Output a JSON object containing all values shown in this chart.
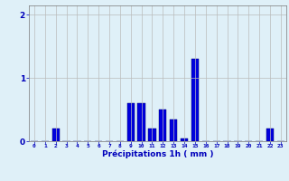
{
  "hours": [
    0,
    1,
    2,
    3,
    4,
    5,
    6,
    7,
    8,
    9,
    10,
    11,
    12,
    13,
    14,
    15,
    16,
    17,
    18,
    19,
    20,
    21,
    22,
    23
  ],
  "values": [
    0.0,
    0.0,
    0.2,
    0.0,
    0.0,
    0.0,
    0.0,
    0.0,
    0.0,
    0.6,
    0.6,
    0.2,
    0.5,
    0.35,
    0.05,
    1.3,
    0.0,
    0.0,
    0.0,
    0.0,
    0.0,
    0.0,
    0.2,
    0.0
  ],
  "bar_color": "#0000dd",
  "bar_edge_color": "#000066",
  "background_color": "#dff0f8",
  "grid_color": "#bbbbbb",
  "xlabel": "Précipitations 1h ( mm )",
  "xlabel_color": "#0000bb",
  "tick_color": "#0000bb",
  "ylim": [
    0,
    2.15
  ],
  "yticks": [
    0,
    1,
    2
  ],
  "figsize": [
    3.2,
    2.0
  ],
  "dpi": 100
}
